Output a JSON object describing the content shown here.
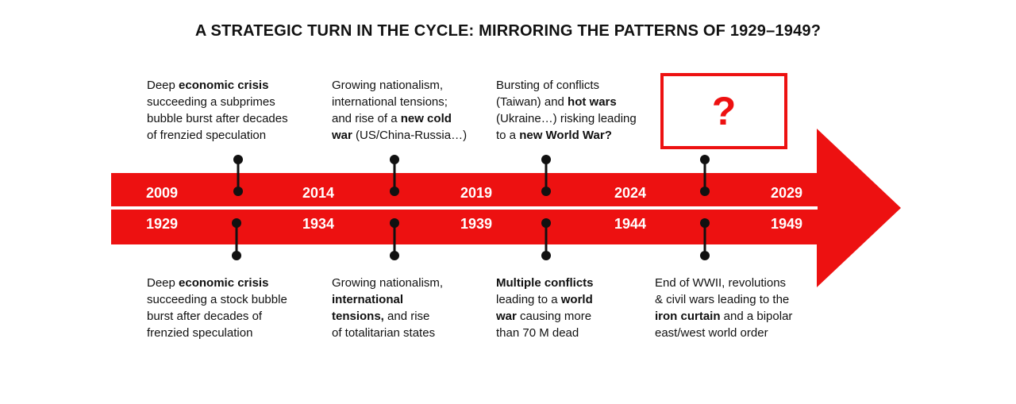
{
  "title": "A STRATEGIC TURN IN THE CYCLE: MIRRORING THE PATTERNS OF 1929–1949?",
  "colors": {
    "red": "#ed1111",
    "ink": "#111111",
    "white": "#ffffff"
  },
  "timeline": {
    "top_years": [
      "2009",
      "2014",
      "2019",
      "2024",
      "2029"
    ],
    "bottom_years": [
      "1929",
      "1934",
      "1939",
      "1944",
      "1949"
    ]
  },
  "question_box": {
    "label": "?"
  },
  "top_annotations": [
    {
      "parts": [
        {
          "t": "Deep ",
          "b": false
        },
        {
          "t": "economic crisis",
          "b": true
        },
        {
          "t": "\nsucceeding a subprimes\nbubble burst after decades\nof frenzied speculation",
          "b": false
        }
      ]
    },
    {
      "parts": [
        {
          "t": "Growing nationalism,\ninternational tensions;\nand rise of a ",
          "b": false
        },
        {
          "t": "new cold\nwar",
          "b": true
        },
        {
          "t": " (US/China-Russia…)",
          "b": false
        }
      ]
    },
    {
      "parts": [
        {
          "t": "Bursting of conflicts\n(Taiwan) and ",
          "b": false
        },
        {
          "t": "hot wars",
          "b": true
        },
        {
          "t": "\n(Ukraine…) risking leading\nto a ",
          "b": false
        },
        {
          "t": "new World War?",
          "b": true
        }
      ]
    }
  ],
  "bottom_annotations": [
    {
      "parts": [
        {
          "t": "Deep ",
          "b": false
        },
        {
          "t": "economic crisis",
          "b": true
        },
        {
          "t": "\nsucceeding a stock bubble\nburst after decades of\nfrenzied speculation",
          "b": false
        }
      ]
    },
    {
      "parts": [
        {
          "t": "Growing nationalism,\n",
          "b": false
        },
        {
          "t": "international\ntensions,",
          "b": true
        },
        {
          "t": " and rise\nof totalitarian states",
          "b": false
        }
      ]
    },
    {
      "parts": [
        {
          "t": "Multiple conflicts",
          "b": true
        },
        {
          "t": "\nleading to a ",
          "b": false
        },
        {
          "t": "world\nwar",
          "b": true
        },
        {
          "t": " causing more\nthan 70 M dead",
          "b": false
        }
      ]
    },
    {
      "parts": [
        {
          "t": "End of WWII, revolutions\n& civil wars leading to the\n",
          "b": false
        },
        {
          "t": "iron curtain",
          "b": true
        },
        {
          "t": " and a bipolar\neast/west world order",
          "b": false
        }
      ]
    }
  ]
}
